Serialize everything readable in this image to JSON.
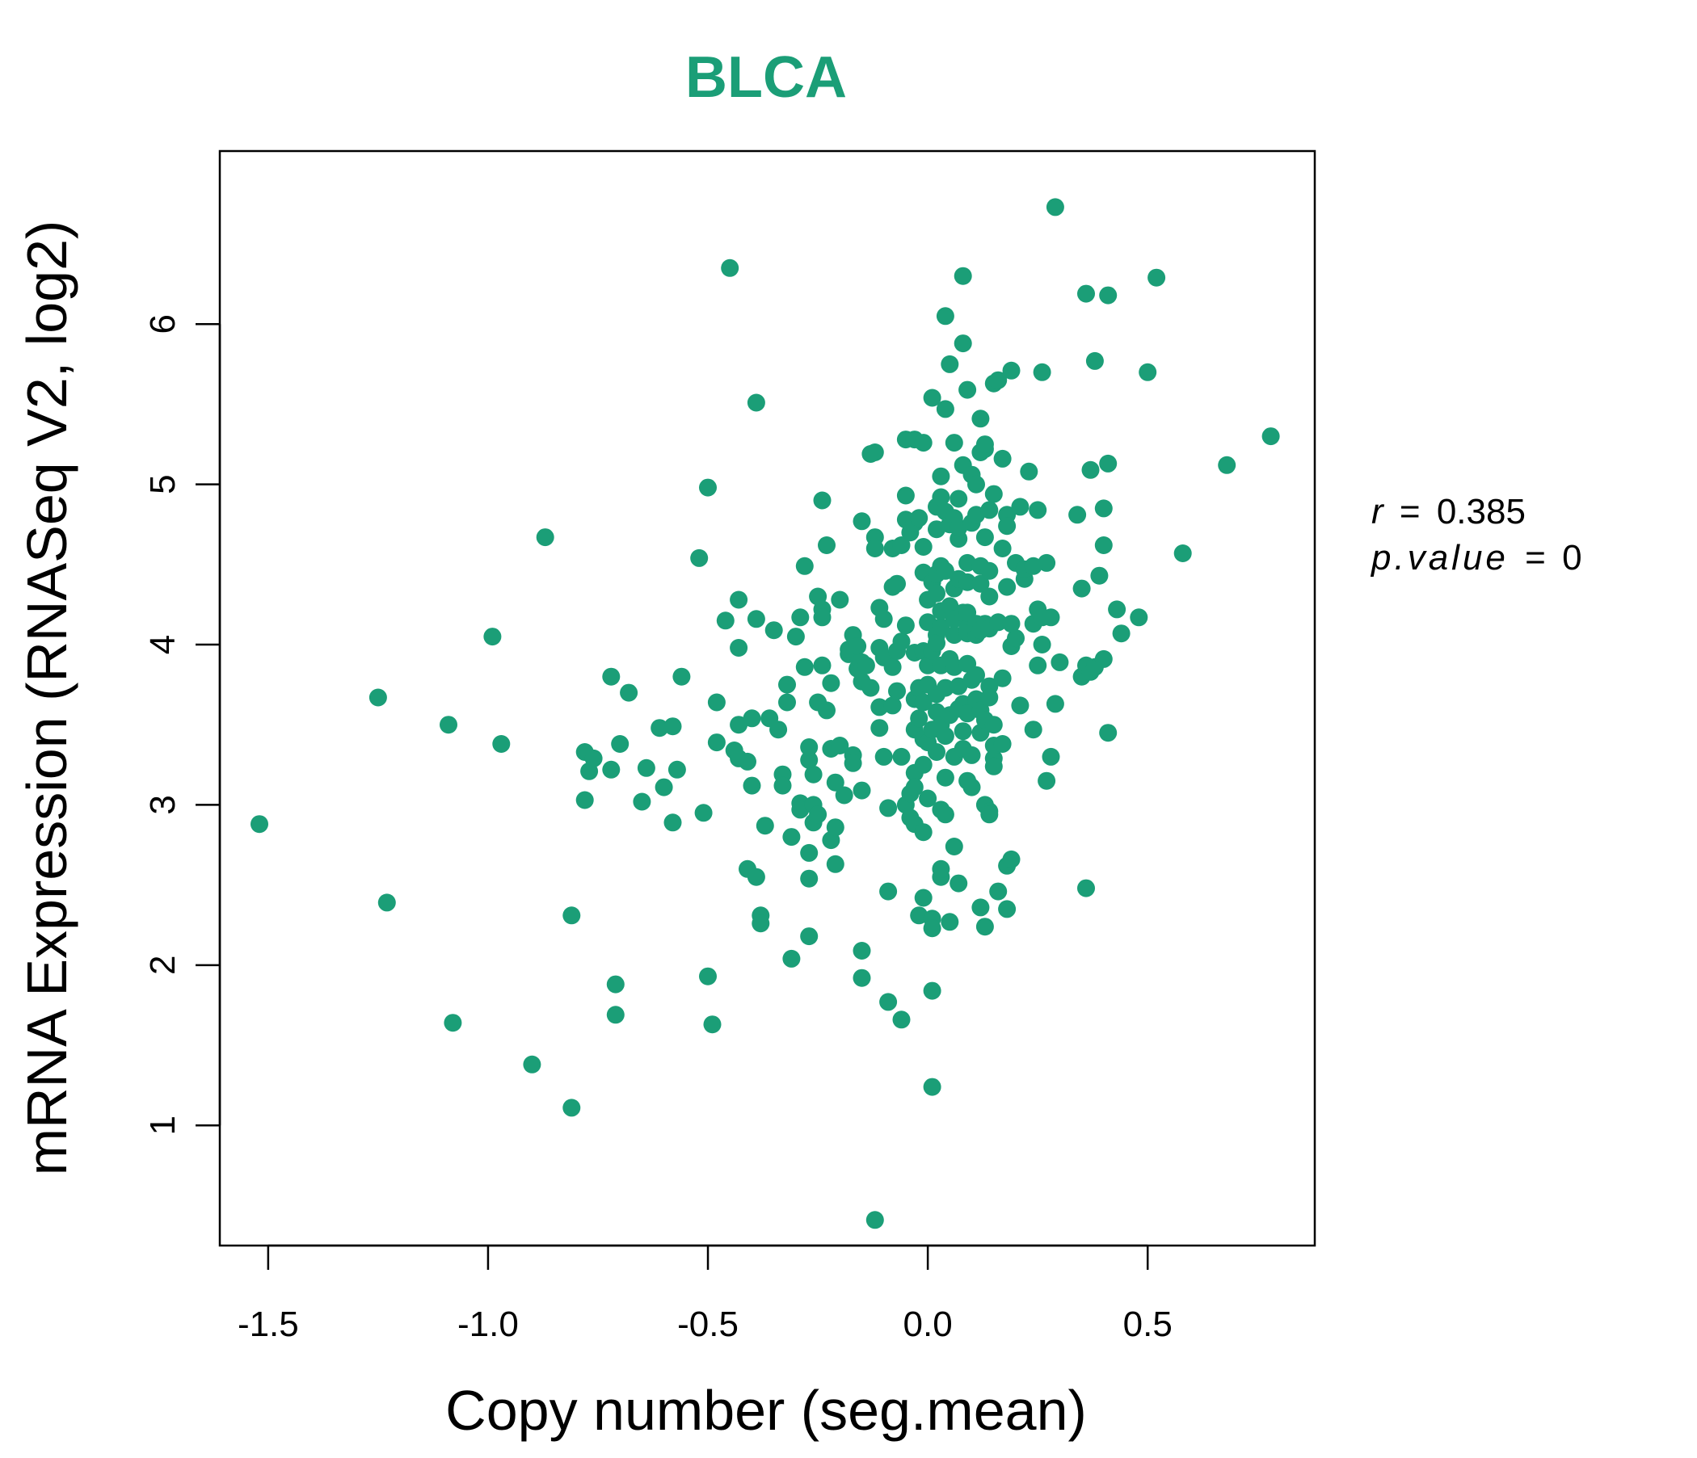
{
  "colors": {
    "accent": "#1b9e77",
    "axis": "#000000",
    "background": "#ffffff"
  },
  "chart_data": {
    "type": "scatter",
    "title": "BLCA",
    "xlabel": "Copy number (seg.mean)",
    "ylabel": "mRNA Expression (RNASeq V2, log2)",
    "xlim": [
      -1.61,
      0.88
    ],
    "ylim": [
      0.25,
      7.08
    ],
    "xticks": [
      -1.5,
      -1.0,
      -0.5,
      0.0,
      0.5
    ],
    "xtick_labels": [
      "-1.5",
      "-1.0",
      "-0.5",
      "0.0",
      "0.5"
    ],
    "yticks": [
      1,
      2,
      3,
      4,
      5,
      6
    ],
    "ytick_labels": [
      "1",
      "2",
      "3",
      "4",
      "5",
      "6"
    ],
    "grid": false,
    "legend": "none",
    "annotations": {
      "r_label": "r",
      "r_value": "0.385",
      "p_label": "p.value",
      "p_value": "0"
    },
    "points": [
      [
        -1.52,
        2.88
      ],
      [
        -1.25,
        3.67
      ],
      [
        -1.23,
        2.39
      ],
      [
        -1.09,
        3.5
      ],
      [
        -1.08,
        1.64
      ],
      [
        -0.99,
        4.05
      ],
      [
        -0.97,
        3.38
      ],
      [
        -0.9,
        1.38
      ],
      [
        -0.87,
        4.67
      ],
      [
        -0.81,
        1.11
      ],
      [
        -0.81,
        2.31
      ],
      [
        -0.78,
        3.03
      ],
      [
        -0.78,
        3.33
      ],
      [
        -0.77,
        3.21
      ],
      [
        -0.76,
        3.29
      ],
      [
        -0.72,
        3.8
      ],
      [
        -0.72,
        3.22
      ],
      [
        -0.71,
        1.88
      ],
      [
        -0.71,
        1.69
      ],
      [
        -0.7,
        3.38
      ],
      [
        -0.68,
        3.7
      ],
      [
        -0.65,
        3.02
      ],
      [
        -0.64,
        3.23
      ],
      [
        -0.61,
        3.48
      ],
      [
        -0.6,
        3.11
      ],
      [
        -0.58,
        2.89
      ],
      [
        -0.57,
        3.22
      ],
      [
        -0.56,
        3.8
      ],
      [
        -0.58,
        3.49
      ],
      [
        -0.52,
        4.54
      ],
      [
        -0.51,
        2.95
      ],
      [
        -0.5,
        4.98
      ],
      [
        -0.5,
        1.93
      ],
      [
        -0.49,
        1.63
      ],
      [
        -0.48,
        3.64
      ],
      [
        -0.48,
        3.39
      ],
      [
        -0.46,
        4.15
      ],
      [
        -0.45,
        6.35
      ],
      [
        -0.44,
        3.34
      ],
      [
        -0.43,
        3.29
      ],
      [
        -0.43,
        4.28
      ],
      [
        -0.43,
        3.98
      ],
      [
        -0.43,
        3.5
      ],
      [
        -0.41,
        3.27
      ],
      [
        -0.41,
        2.6
      ],
      [
        -0.4,
        3.54
      ],
      [
        -0.4,
        3.12
      ],
      [
        -0.39,
        2.55
      ],
      [
        -0.39,
        5.51
      ],
      [
        -0.39,
        4.16
      ],
      [
        -0.38,
        2.31
      ],
      [
        -0.38,
        2.26
      ],
      [
        -0.37,
        2.87
      ],
      [
        -0.36,
        3.54
      ],
      [
        -0.35,
        4.09
      ],
      [
        -0.34,
        3.47
      ],
      [
        -0.33,
        3.19
      ],
      [
        -0.33,
        3.12
      ],
      [
        -0.32,
        3.64
      ],
      [
        -0.32,
        3.75
      ],
      [
        -0.31,
        2.04
      ],
      [
        -0.31,
        2.8
      ],
      [
        -0.3,
        4.05
      ],
      [
        -0.29,
        4.17
      ],
      [
        -0.29,
        3.01
      ],
      [
        -0.29,
        2.97
      ],
      [
        -0.28,
        4.49
      ],
      [
        -0.28,
        3.86
      ],
      [
        -0.27,
        2.54
      ],
      [
        -0.27,
        2.7
      ],
      [
        -0.27,
        2.18
      ],
      [
        -0.27,
        3.28
      ],
      [
        -0.27,
        3.36
      ],
      [
        -0.26,
        3.0
      ],
      [
        -0.26,
        3.19
      ],
      [
        -0.26,
        2.89
      ],
      [
        -0.25,
        3.64
      ],
      [
        -0.25,
        2.94
      ],
      [
        -0.25,
        4.3
      ],
      [
        -0.24,
        3.87
      ],
      [
        -0.24,
        4.22
      ],
      [
        -0.24,
        4.17
      ],
      [
        -0.24,
        4.9
      ],
      [
        -0.23,
        3.59
      ],
      [
        -0.23,
        4.62
      ],
      [
        -0.22,
        3.35
      ],
      [
        -0.22,
        3.76
      ],
      [
        -0.22,
        2.78
      ],
      [
        -0.21,
        2.86
      ],
      [
        -0.21,
        2.63
      ],
      [
        -0.21,
        3.14
      ],
      [
        -0.2,
        3.37
      ],
      [
        -0.2,
        4.28
      ],
      [
        -0.19,
        3.06
      ],
      [
        -0.18,
        3.94
      ],
      [
        -0.18,
        3.97
      ],
      [
        -0.17,
        4.06
      ],
      [
        -0.17,
        3.31
      ],
      [
        -0.17,
        3.26
      ],
      [
        -0.16,
        3.85
      ],
      [
        -0.16,
        3.99
      ],
      [
        -0.15,
        4.77
      ],
      [
        -0.15,
        3.89
      ],
      [
        -0.15,
        2.09
      ],
      [
        -0.15,
        1.92
      ],
      [
        -0.15,
        3.09
      ],
      [
        -0.15,
        3.77
      ],
      [
        -0.14,
        3.87
      ],
      [
        -0.13,
        3.73
      ],
      [
        -0.13,
        5.19
      ],
      [
        -0.12,
        5.2
      ],
      [
        -0.12,
        0.41
      ],
      [
        -0.12,
        4.67
      ],
      [
        -0.12,
        4.6
      ],
      [
        -0.11,
        3.61
      ],
      [
        -0.11,
        3.48
      ],
      [
        -0.11,
        3.98
      ],
      [
        -0.11,
        4.23
      ],
      [
        -0.1,
        3.3
      ],
      [
        -0.1,
        4.16
      ],
      [
        -0.1,
        3.92
      ],
      [
        -0.09,
        1.77
      ],
      [
        -0.09,
        2.98
      ],
      [
        -0.09,
        2.46
      ],
      [
        -0.08,
        4.6
      ],
      [
        -0.08,
        4.36
      ],
      [
        -0.08,
        3.62
      ],
      [
        -0.08,
        3.86
      ],
      [
        -0.07,
        4.38
      ],
      [
        -0.07,
        3.71
      ],
      [
        -0.07,
        3.96
      ],
      [
        -0.06,
        4.02
      ],
      [
        -0.06,
        3.3
      ],
      [
        -0.06,
        1.66
      ],
      [
        -0.06,
        4.62
      ],
      [
        -0.05,
        5.28
      ],
      [
        -0.05,
        4.93
      ],
      [
        -0.05,
        4.78
      ],
      [
        -0.05,
        4.12
      ],
      [
        -0.05,
        3.0
      ],
      [
        -0.04,
        2.92
      ],
      [
        -0.04,
        3.07
      ],
      [
        -0.04,
        4.7
      ],
      [
        -0.03,
        4.76
      ],
      [
        -0.03,
        3.47
      ],
      [
        -0.03,
        3.2
      ],
      [
        -0.03,
        5.28
      ],
      [
        -0.03,
        3.95
      ],
      [
        -0.03,
        3.66
      ],
      [
        -0.03,
        3.11
      ],
      [
        -0.03,
        2.88
      ],
      [
        -0.02,
        2.31
      ],
      [
        -0.02,
        3.73
      ],
      [
        -0.02,
        3.54
      ],
      [
        -0.02,
        4.79
      ],
      [
        -0.01,
        3.96
      ],
      [
        -0.01,
        3.25
      ],
      [
        -0.01,
        3.41
      ],
      [
        -0.01,
        4.45
      ],
      [
        -0.01,
        3.64
      ],
      [
        -0.01,
        2.83
      ],
      [
        -0.01,
        4.61
      ],
      [
        -0.01,
        2.42
      ],
      [
        -0.01,
        5.26
      ],
      [
        0.0,
        3.39
      ],
      [
        0.0,
        4.28
      ],
      [
        0.0,
        3.75
      ],
      [
        0.0,
        3.87
      ],
      [
        0.0,
        3.04
      ],
      [
        0.0,
        4.14
      ],
      [
        0.01,
        4.39
      ],
      [
        0.01,
        5.54
      ],
      [
        0.01,
        3.96
      ],
      [
        0.01,
        1.24
      ],
      [
        0.01,
        1.84
      ],
      [
        0.01,
        2.29
      ],
      [
        0.01,
        2.23
      ],
      [
        0.01,
        3.47
      ],
      [
        0.02,
        3.58
      ],
      [
        0.02,
        4.06
      ],
      [
        0.02,
        4.32
      ],
      [
        0.02,
        4.01
      ],
      [
        0.02,
        4.44
      ],
      [
        0.02,
        4.72
      ],
      [
        0.02,
        3.69
      ],
      [
        0.02,
        3.33
      ],
      [
        0.02,
        4.86
      ],
      [
        0.03,
        4.11
      ],
      [
        0.03,
        3.87
      ],
      [
        0.03,
        4.21
      ],
      [
        0.03,
        4.92
      ],
      [
        0.03,
        2.55
      ],
      [
        0.03,
        5.05
      ],
      [
        0.03,
        4.49
      ],
      [
        0.03,
        3.5
      ],
      [
        0.03,
        2.6
      ],
      [
        0.03,
        2.97
      ],
      [
        0.04,
        3.17
      ],
      [
        0.04,
        6.05
      ],
      [
        0.04,
        4.83
      ],
      [
        0.04,
        3.73
      ],
      [
        0.04,
        4.46
      ],
      [
        0.04,
        3.43
      ],
      [
        0.04,
        2.94
      ],
      [
        0.04,
        5.47
      ],
      [
        0.05,
        3.56
      ],
      [
        0.05,
        4.24
      ],
      [
        0.05,
        4.75
      ],
      [
        0.05,
        3.91
      ],
      [
        0.05,
        5.75
      ],
      [
        0.05,
        2.27
      ],
      [
        0.06,
        4.06
      ],
      [
        0.06,
        2.74
      ],
      [
        0.06,
        4.16
      ],
      [
        0.06,
        3.3
      ],
      [
        0.06,
        3.86
      ],
      [
        0.06,
        4.35
      ],
      [
        0.06,
        4.79
      ],
      [
        0.06,
        5.26
      ],
      [
        0.07,
        4.66
      ],
      [
        0.07,
        4.41
      ],
      [
        0.07,
        3.6
      ],
      [
        0.07,
        3.74
      ],
      [
        0.07,
        2.51
      ],
      [
        0.07,
        4.91
      ],
      [
        0.07,
        4.73
      ],
      [
        0.08,
        5.88
      ],
      [
        0.08,
        3.35
      ],
      [
        0.08,
        3.46
      ],
      [
        0.08,
        4.2
      ],
      [
        0.08,
        6.3
      ],
      [
        0.08,
        5.12
      ],
      [
        0.08,
        3.63
      ],
      [
        0.09,
        4.1
      ],
      [
        0.09,
        3.88
      ],
      [
        0.09,
        3.57
      ],
      [
        0.09,
        3.15
      ],
      [
        0.09,
        4.2
      ],
      [
        0.09,
        4.51
      ],
      [
        0.09,
        4.39
      ],
      [
        0.09,
        5.59
      ],
      [
        0.09,
        4.07
      ],
      [
        0.1,
        5.06
      ],
      [
        0.1,
        3.31
      ],
      [
        0.1,
        3.78
      ],
      [
        0.1,
        4.76
      ],
      [
        0.1,
        3.11
      ],
      [
        0.11,
        4.06
      ],
      [
        0.11,
        3.66
      ],
      [
        0.11,
        5.0
      ],
      [
        0.11,
        3.81
      ],
      [
        0.11,
        4.13
      ],
      [
        0.11,
        4.81
      ],
      [
        0.12,
        3.45
      ],
      [
        0.12,
        2.36
      ],
      [
        0.12,
        4.38
      ],
      [
        0.12,
        5.2
      ],
      [
        0.12,
        4.09
      ],
      [
        0.12,
        4.49
      ],
      [
        0.12,
        3.59
      ],
      [
        0.12,
        5.41
      ],
      [
        0.13,
        2.24
      ],
      [
        0.13,
        3.0
      ],
      [
        0.13,
        4.13
      ],
      [
        0.13,
        5.22
      ],
      [
        0.13,
        3.53
      ],
      [
        0.13,
        4.67
      ],
      [
        0.13,
        5.25
      ],
      [
        0.14,
        4.46
      ],
      [
        0.14,
        4.1
      ],
      [
        0.14,
        3.74
      ],
      [
        0.14,
        2.96
      ],
      [
        0.14,
        4.84
      ],
      [
        0.14,
        3.67
      ],
      [
        0.14,
        4.3
      ],
      [
        0.14,
        2.94
      ],
      [
        0.15,
        3.29
      ],
      [
        0.15,
        3.5
      ],
      [
        0.15,
        3.37
      ],
      [
        0.15,
        3.24
      ],
      [
        0.15,
        5.63
      ],
      [
        0.15,
        4.94
      ],
      [
        0.16,
        2.46
      ],
      [
        0.16,
        4.14
      ],
      [
        0.16,
        5.65
      ],
      [
        0.17,
        3.38
      ],
      [
        0.17,
        5.16
      ],
      [
        0.17,
        3.79
      ],
      [
        0.17,
        4.6
      ],
      [
        0.18,
        4.81
      ],
      [
        0.18,
        2.62
      ],
      [
        0.18,
        4.74
      ],
      [
        0.18,
        4.36
      ],
      [
        0.18,
        2.35
      ],
      [
        0.19,
        4.13
      ],
      [
        0.19,
        3.99
      ],
      [
        0.19,
        5.71
      ],
      [
        0.19,
        2.66
      ],
      [
        0.2,
        4.04
      ],
      [
        0.2,
        4.51
      ],
      [
        0.21,
        4.86
      ],
      [
        0.21,
        3.62
      ],
      [
        0.22,
        4.41
      ],
      [
        0.22,
        4.47
      ],
      [
        0.23,
        5.08
      ],
      [
        0.24,
        4.49
      ],
      [
        0.24,
        4.13
      ],
      [
        0.24,
        3.47
      ],
      [
        0.25,
        3.87
      ],
      [
        0.25,
        4.84
      ],
      [
        0.25,
        4.22
      ],
      [
        0.26,
        4.0
      ],
      [
        0.26,
        5.7
      ],
      [
        0.26,
        4.17
      ],
      [
        0.27,
        4.51
      ],
      [
        0.27,
        3.15
      ],
      [
        0.28,
        3.3
      ],
      [
        0.28,
        4.17
      ],
      [
        0.29,
        6.73
      ],
      [
        0.29,
        3.63
      ],
      [
        0.3,
        3.89
      ],
      [
        0.34,
        4.81
      ],
      [
        0.35,
        3.8
      ],
      [
        0.35,
        4.35
      ],
      [
        0.36,
        3.87
      ],
      [
        0.36,
        6.19
      ],
      [
        0.36,
        2.48
      ],
      [
        0.37,
        3.83
      ],
      [
        0.37,
        5.09
      ],
      [
        0.38,
        5.77
      ],
      [
        0.38,
        3.86
      ],
      [
        0.39,
        4.43
      ],
      [
        0.4,
        3.91
      ],
      [
        0.4,
        4.85
      ],
      [
        0.4,
        4.62
      ],
      [
        0.41,
        5.13
      ],
      [
        0.41,
        6.18
      ],
      [
        0.41,
        3.45
      ],
      [
        0.43,
        4.22
      ],
      [
        0.44,
        4.07
      ],
      [
        0.48,
        4.17
      ],
      [
        0.5,
        5.7
      ],
      [
        0.52,
        6.29
      ],
      [
        0.58,
        4.57
      ],
      [
        0.68,
        5.12
      ],
      [
        0.78,
        5.3
      ]
    ]
  }
}
